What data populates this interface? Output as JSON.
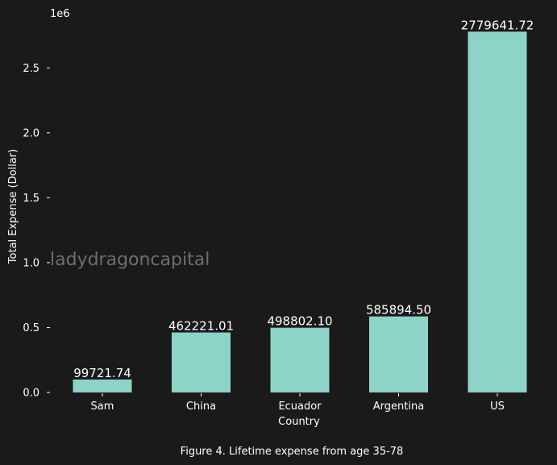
{
  "chart_data": {
    "type": "bar",
    "categories": [
      "Sam",
      "China",
      "Ecuador",
      "Argentina",
      "US"
    ],
    "values": [
      99721.74,
      462221.01,
      498802.1,
      585894.5,
      2779641.72
    ],
    "data_labels": [
      "99721.74",
      "462221.01",
      "498802.10",
      "585894.50",
      "2779641.72"
    ],
    "xlabel": "Country",
    "ylabel": "Total Expense (Dollar)",
    "y_multiplier": "1e6",
    "ylim": [
      0,
      2800000
    ],
    "y_ticks": [
      0,
      500000,
      1000000,
      1500000,
      2000000,
      2500000
    ],
    "y_tick_labels": [
      "0.0",
      "0.5",
      "1.0",
      "1.5",
      "2.0",
      "2.5"
    ],
    "grid": false,
    "caption": "Figure 4. Lifetime expense from age 35-78",
    "watermark": "ladydragoncapital",
    "colors": {
      "background": "#1a1a1a",
      "bar": "#8dd3c7",
      "text": "#ffffff",
      "watermark": "#6e6e6e"
    }
  }
}
